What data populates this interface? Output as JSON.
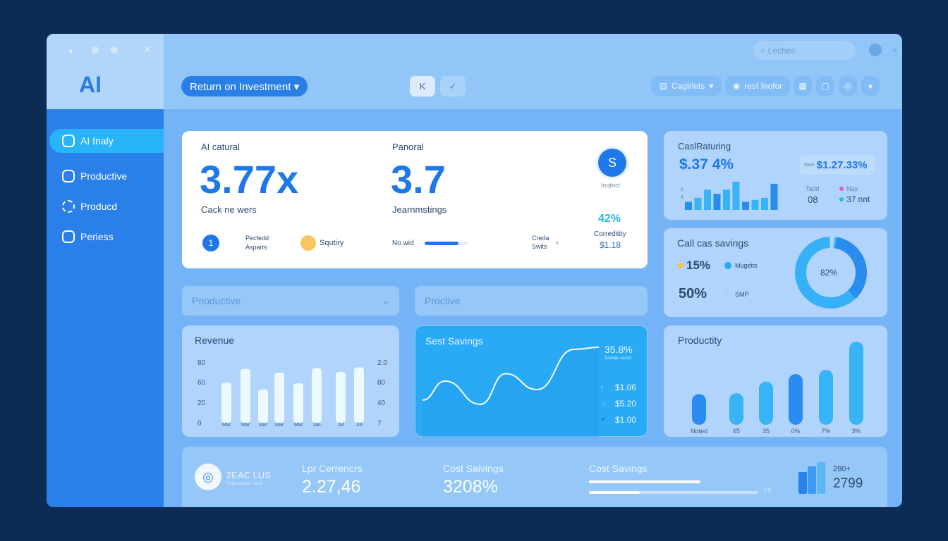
{
  "window": {
    "title_logo": "AI"
  },
  "header": {
    "dropdown": "Return on Investment ▾",
    "btn1": "K",
    "btn2": "✓",
    "search_placeholder": "Leches",
    "filter1": "Cagirlets",
    "filter2": "rest Inofor"
  },
  "sidebar": {
    "items": [
      {
        "label": "AI Inaly",
        "icon": "shield-icon"
      },
      {
        "label": "Productive",
        "icon": "brain-icon"
      },
      {
        "label": "Producd",
        "icon": "circle-icon"
      },
      {
        "label": "Periess",
        "icon": "chart-icon"
      }
    ]
  },
  "kpi": {
    "label1": "AI catural",
    "value1": "3.77x",
    "sub1": "Cack ne wers",
    "label2": "Panoral",
    "value2": "3.7",
    "sub2": "Jearnmstings",
    "avatar": "S",
    "avatar_caption": "Inqtect",
    "badge_num": "1",
    "footer1": "Pecfedd Asparts",
    "footer2": "Squtiry",
    "footer3": "No wid",
    "progress": 0.78,
    "footer4": "Creda Swits",
    "pct": "42%",
    "pct_label": "Correditity",
    "pct_value": "$1.18"
  },
  "selects": {
    "left": "Pnoductive",
    "right": "Proctive"
  },
  "cost_returning": {
    "title": "CaslRaturing",
    "value": "$.37 4%",
    "badge_prefix": "Rate",
    "badge": "$1.27.33%",
    "axis": [
      "8",
      "4"
    ],
    "bars": [
      2,
      3,
      5,
      4,
      5,
      7,
      2,
      2.5,
      3,
      6.5
    ],
    "legend1": "Tadd",
    "legend1_value": "08",
    "legend2": "Nay",
    "legend2_value": "37 nnt",
    "colors": {
      "legend1": "#4fa9f0",
      "legend2": "#e05ab8",
      "legend2b": "#2cb5f2"
    }
  },
  "call_savings": {
    "title": "Call cas savings",
    "stat1": "15%",
    "stat2": "50%",
    "legend1": "Mugetis",
    "legend2": "SMP",
    "donut_label": "82%",
    "donut_fraction": 0.82,
    "colors": {
      "stat1": "#f5c542",
      "legend1": "#26a9ef",
      "legend2": "#a8d3fb"
    }
  },
  "revenue": {
    "title": "Revenue",
    "left_ticks": [
      "80",
      "60",
      "20",
      "0"
    ],
    "right_ticks": [
      "2.0",
      "80",
      "40",
      "7"
    ],
    "categories": [
      "Mar",
      "Mar",
      "Mar",
      "Mar",
      "Mar",
      "Jan",
      "Jul",
      "Jul"
    ],
    "values": [
      53,
      71,
      44,
      66,
      52,
      72,
      67,
      73
    ]
  },
  "cost_savings_chart": {
    "title": "Sest Savings",
    "headline": "35.8%",
    "headline_sub": "Savings ounst",
    "points": [
      30,
      48,
      26,
      55,
      40,
      78,
      80
    ],
    "rows": [
      "$1.06",
      "$5.20",
      "$1.00"
    ]
  },
  "productivity": {
    "title": "Productity",
    "categories": [
      "Noted",
      "65",
      "35",
      "0%",
      "7%",
      "3%"
    ],
    "values": [
      37,
      38,
      52,
      61,
      66,
      100
    ]
  },
  "footer": {
    "logo_title": "2EAC LUS",
    "logo_sub": "Cogntrolaive Leeds",
    "m1_label": "Lpr Cerrericrs",
    "m1_value": "2.27,46",
    "m2_label": "Cost Saivings",
    "m2_value": "3208%",
    "m3_label": "Cost Savings",
    "bar1": 0.66,
    "bar2": 0.3,
    "bar_end": "ℂ0",
    "m4_label": "290+",
    "m4_value": "2799"
  }
}
